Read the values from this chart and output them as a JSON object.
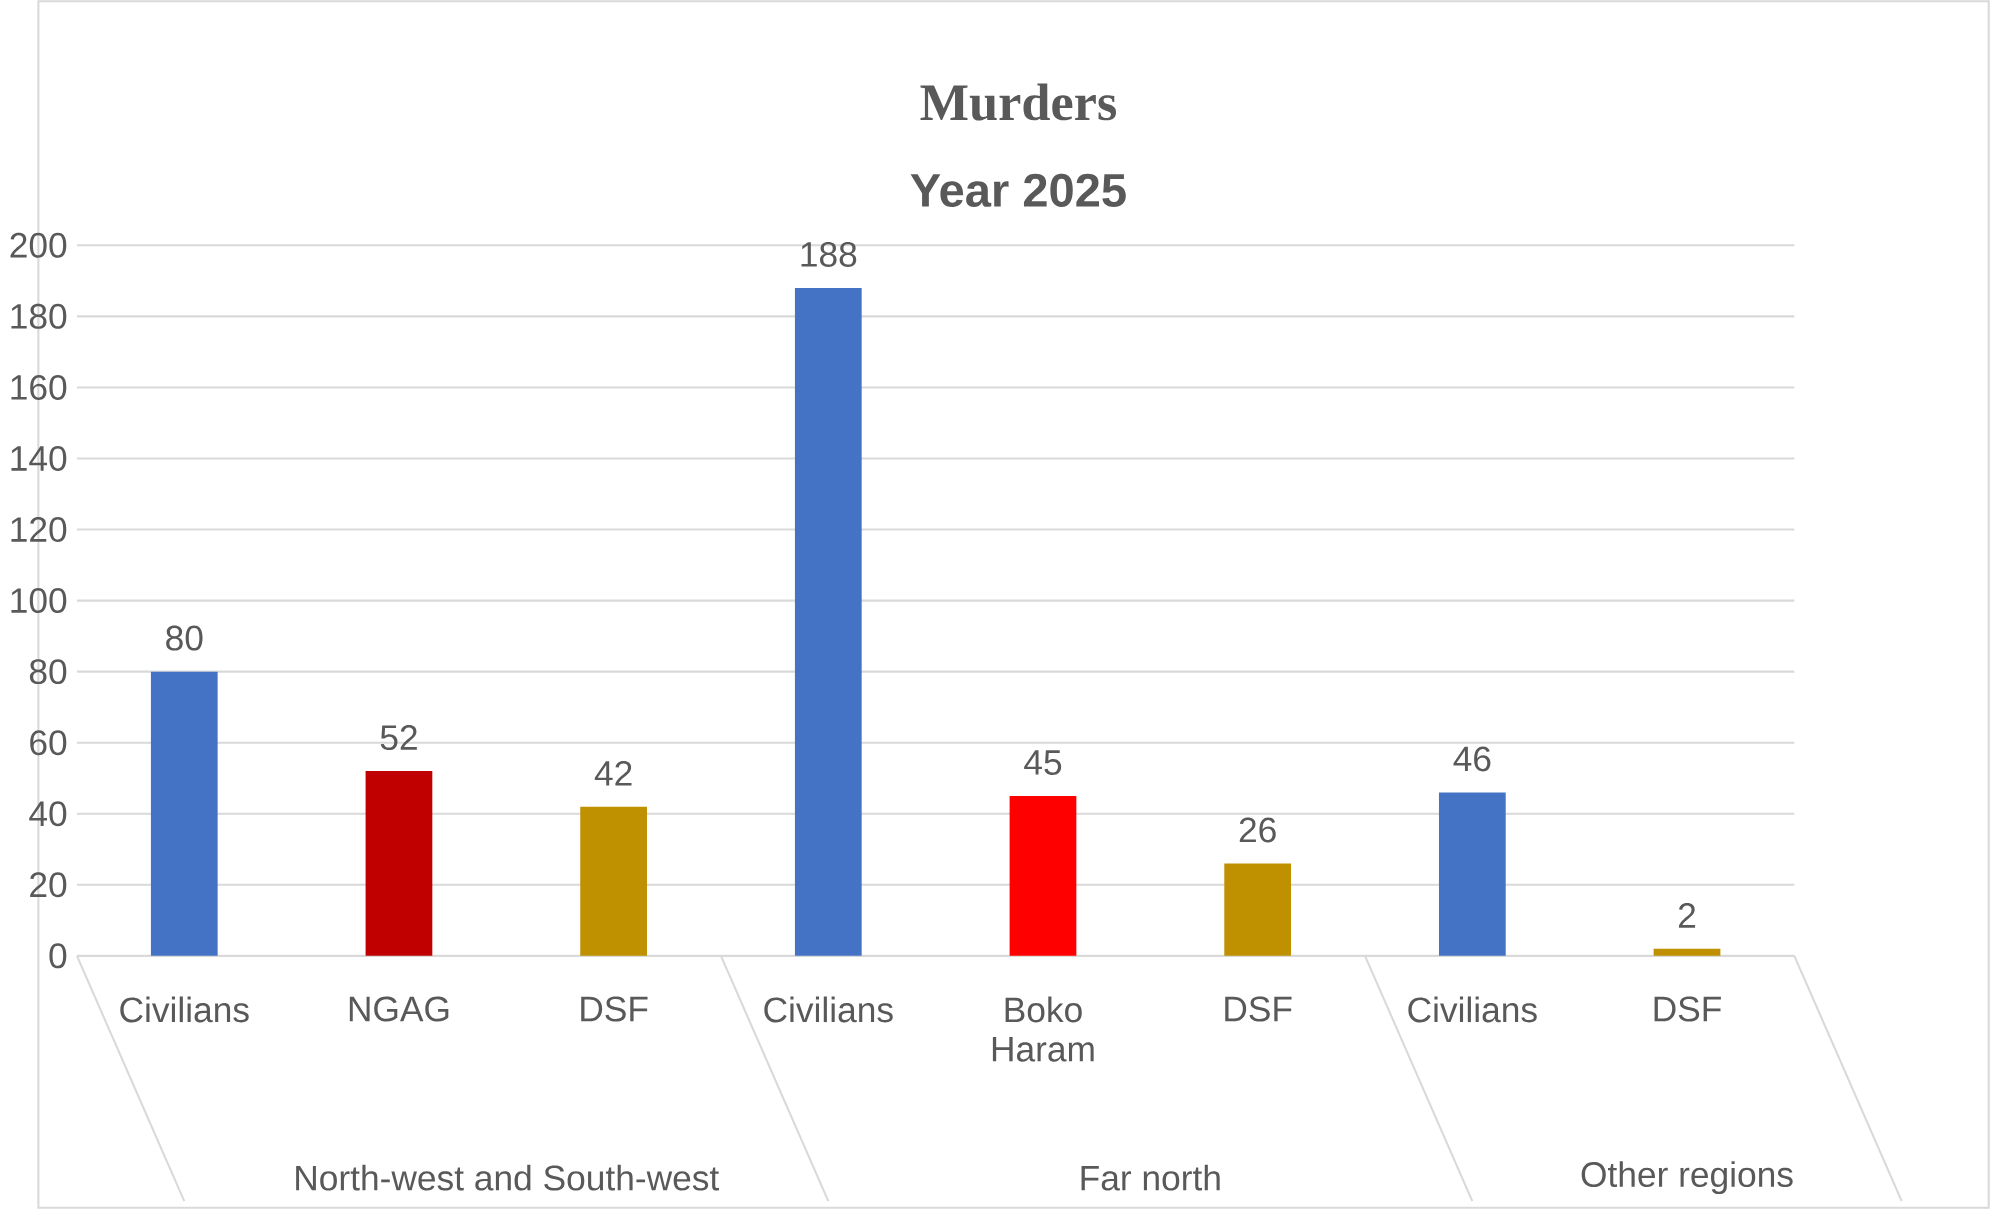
{
  "chart_data": {
    "type": "bar",
    "title": "Murders",
    "subtitle": "Year 2025",
    "categories": [
      "Civilians",
      "NGAG",
      "DSF",
      "Civilians",
      "Boko Haram",
      "DSF",
      "Civilians",
      "DSF"
    ],
    "values": [
      80,
      52,
      42,
      188,
      45,
      26,
      46,
      2
    ],
    "colors": [
      "#4472c4",
      "#c00000",
      "#bf9000",
      "#4472c4",
      "#ff0000",
      "#bf9000",
      "#4472c4",
      "#bf9000"
    ],
    "ylim": [
      0,
      200
    ],
    "yticks": [
      0,
      20,
      40,
      60,
      80,
      100,
      120,
      140,
      160,
      180,
      200
    ],
    "grid": "y",
    "data_labels": true,
    "annotations": [
      "North-west and South-west",
      "Far north",
      "Other regions"
    ]
  }
}
